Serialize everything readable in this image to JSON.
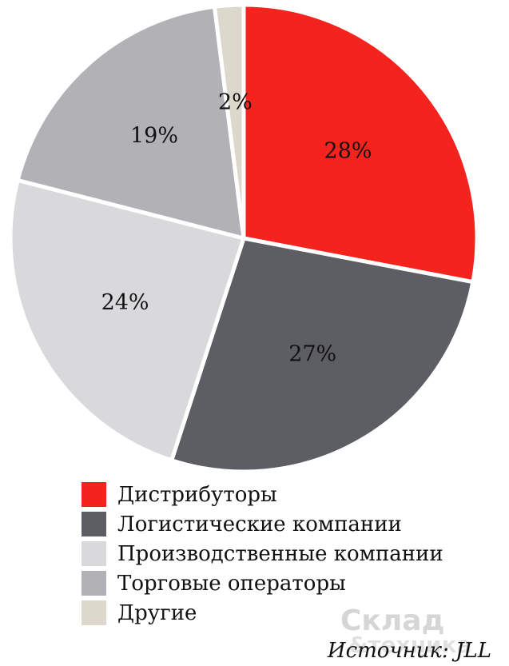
{
  "chart_data": {
    "type": "pie",
    "start_angle_deg": 0,
    "direction": "clockwise",
    "slices": [
      {
        "label": "Дистрибуторы",
        "value": 28,
        "value_label": "28%",
        "color": "#f5231d"
      },
      {
        "label": "Логистические компании",
        "value": 27,
        "value_label": "27%",
        "color": "#5d5e63"
      },
      {
        "label": "Производственные компании",
        "value": 24,
        "value_label": "24%",
        "color": "#d9d9db"
      },
      {
        "label": "Торговые операторы",
        "value": 19,
        "value_label": "19%",
        "color": "#b1b1b6"
      },
      {
        "label": "Другие",
        "value": 2,
        "value_label": "2%",
        "color": "#ddd8cc"
      }
    ],
    "legend_position": "bottom-left"
  },
  "source": "Источник: JLL",
  "watermark": {
    "line1": "Склад",
    "line2": "&техника"
  }
}
